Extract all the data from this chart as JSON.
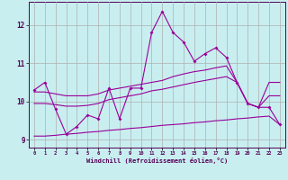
{
  "background_color": "#c8eef0",
  "grid_color": "#b0b0b0",
  "line_color": "#990099",
  "xlabel": "Windchill (Refroidissement éolien,°C)",
  "x_values": [
    0,
    1,
    2,
    3,
    4,
    5,
    6,
    7,
    8,
    9,
    10,
    11,
    12,
    13,
    14,
    15,
    16,
    17,
    18,
    19,
    20,
    21,
    22,
    23
  ],
  "main_line": [
    10.3,
    10.5,
    9.8,
    9.15,
    9.35,
    9.65,
    9.55,
    10.35,
    9.55,
    10.35,
    10.35,
    11.8,
    12.35,
    11.8,
    11.55,
    11.05,
    11.25,
    11.4,
    11.15,
    10.5,
    9.95,
    9.85,
    9.85,
    9.4
  ],
  "line2": [
    10.25,
    10.25,
    10.2,
    10.15,
    10.15,
    10.15,
    10.2,
    10.3,
    10.35,
    10.4,
    10.45,
    10.5,
    10.55,
    10.65,
    10.72,
    10.78,
    10.82,
    10.88,
    10.93,
    10.5,
    9.95,
    9.85,
    10.5,
    10.5
  ],
  "line3": [
    9.95,
    9.95,
    9.92,
    9.88,
    9.88,
    9.9,
    9.95,
    10.05,
    10.1,
    10.15,
    10.2,
    10.28,
    10.32,
    10.38,
    10.44,
    10.5,
    10.55,
    10.6,
    10.65,
    10.5,
    9.95,
    9.85,
    10.15,
    10.15
  ],
  "line4": [
    9.1,
    9.1,
    9.12,
    9.15,
    9.17,
    9.2,
    9.22,
    9.25,
    9.27,
    9.3,
    9.32,
    9.35,
    9.38,
    9.4,
    9.42,
    9.45,
    9.47,
    9.5,
    9.52,
    9.55,
    9.57,
    9.6,
    9.62,
    9.4
  ],
  "ylim": [
    8.8,
    12.6
  ],
  "yticks": [
    9,
    10,
    11,
    12
  ],
  "xticks": [
    0,
    1,
    2,
    3,
    4,
    5,
    6,
    7,
    8,
    9,
    10,
    11,
    12,
    13,
    14,
    15,
    16,
    17,
    18,
    19,
    20,
    21,
    22,
    23
  ]
}
